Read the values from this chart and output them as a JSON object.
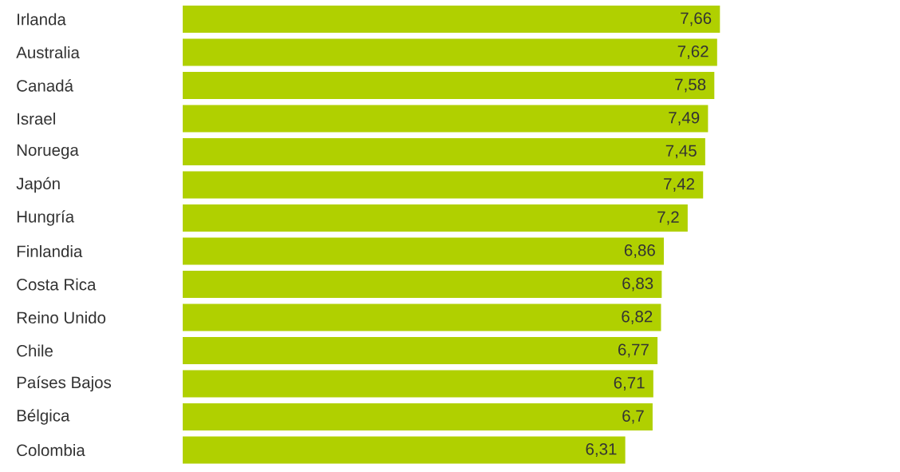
{
  "chart_data": {
    "type": "bar",
    "orientation": "horizontal",
    "categories": [
      "Irlanda",
      "Australia",
      "Canadá",
      "Israel",
      "Noruega",
      "Japón",
      "Hungría",
      "Finlandia",
      "Costa Rica",
      "Reino Unido",
      "Chile",
      "Países Bajos",
      "Bélgica",
      "Colombia"
    ],
    "values": [
      7.66,
      7.62,
      7.58,
      7.49,
      7.45,
      7.42,
      7.2,
      6.86,
      6.83,
      6.82,
      6.77,
      6.71,
      6.7,
      6.31
    ],
    "color": "#b0d000",
    "value_labels": [
      "7,66",
      "7,62",
      "7,58",
      "7,49",
      "7,45",
      "7,42",
      "7,2",
      "6,86",
      "6,83",
      "6,82",
      "6,77",
      "6,71",
      "6,7",
      "6,31"
    ]
  }
}
